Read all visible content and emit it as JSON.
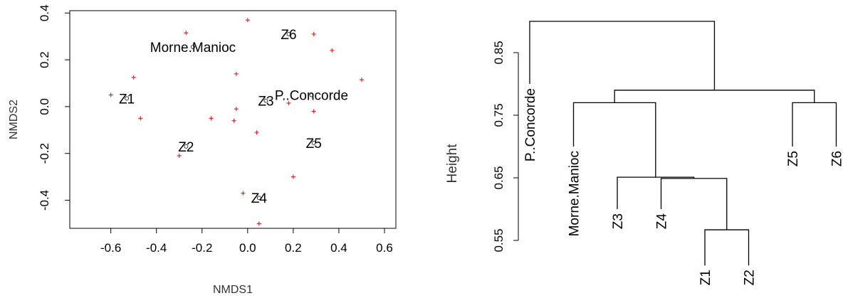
{
  "chart_data": [
    {
      "type": "scatter",
      "title": "",
      "xlabel": "NMDS1",
      "ylabel": "NMDS2",
      "xlim": [
        -0.78,
        0.65
      ],
      "ylim": [
        -0.52,
        0.41
      ],
      "xticks": [
        -0.6,
        -0.4,
        -0.2,
        0.0,
        0.2,
        0.4,
        0.6
      ],
      "xtick_labels": [
        "-0.6",
        "-0.4",
        "-0.2",
        "0.0",
        "0.2",
        "0.4",
        "0.6"
      ],
      "yticks": [
        -0.4,
        -0.2,
        0.0,
        0.2,
        0.4
      ],
      "ytick_labels": [
        "-0.4",
        "-0.2",
        "0.0",
        "0.2",
        "0.4"
      ],
      "sites": [
        {
          "name": "Morne.Manioc",
          "x": -0.24,
          "y": 0.255
        },
        {
          "name": "Z6",
          "x": 0.18,
          "y": 0.31
        },
        {
          "name": "P..Concorde",
          "x": 0.28,
          "y": 0.05
        },
        {
          "name": "Z1",
          "x": -0.53,
          "y": 0.035
        },
        {
          "name": "Z3",
          "x": 0.08,
          "y": 0.025
        },
        {
          "name": "Z2",
          "x": -0.27,
          "y": -0.17
        },
        {
          "name": "Z5",
          "x": 0.29,
          "y": -0.155
        },
        {
          "name": "Z4",
          "x": 0.05,
          "y": -0.39
        }
      ],
      "species_points": [
        {
          "x": -0.27,
          "y": 0.315
        },
        {
          "x": 0.0,
          "y": 0.37
        },
        {
          "x": 0.29,
          "y": 0.31
        },
        {
          "x": 0.37,
          "y": 0.24
        },
        {
          "x": -0.5,
          "y": 0.125
        },
        {
          "x": -0.05,
          "y": 0.14
        },
        {
          "x": 0.5,
          "y": 0.115
        },
        {
          "x": -0.6,
          "y": 0.05
        },
        {
          "x": 0.18,
          "y": 0.015
        },
        {
          "x": -0.05,
          "y": -0.01
        },
        {
          "x": 0.29,
          "y": -0.02
        },
        {
          "x": -0.47,
          "y": -0.05
        },
        {
          "x": -0.16,
          "y": -0.05
        },
        {
          "x": -0.06,
          "y": -0.06
        },
        {
          "x": 0.04,
          "y": -0.11
        },
        {
          "x": -0.3,
          "y": -0.21
        },
        {
          "x": 0.2,
          "y": -0.3
        },
        {
          "x": -0.02,
          "y": -0.37
        },
        {
          "x": 0.05,
          "y": -0.5
        }
      ]
    },
    {
      "type": "dendrogram",
      "title": "",
      "ylabel": "Height",
      "ylim": [
        0.55,
        0.9
      ],
      "yticks": [
        0.55,
        0.65,
        0.75,
        0.85
      ],
      "ytick_labels": [
        "0.55",
        "0.65",
        "0.75",
        "0.85"
      ],
      "leaves": [
        "P..Concorde",
        "Morne.Manioc",
        "Z3",
        "Z4",
        "Z1",
        "Z2",
        "Z5",
        "Z6"
      ],
      "merges": [
        {
          "left": "Z1",
          "right": "Z2",
          "height": 0.567
        },
        {
          "left": "Z4",
          "right": "Z1+Z2",
          "height": 0.649
        },
        {
          "left": "Z3",
          "right": "Z4+Z1+Z2",
          "height": 0.651
        },
        {
          "left": "Morne.Manioc",
          "right": "Z3+Z4+Z1+Z2",
          "height": 0.77
        },
        {
          "left": "Z5",
          "right": "Z6",
          "height": 0.77
        },
        {
          "left": "Morne.Manioc+Z3+Z4+Z1+Z2",
          "right": "Z5+Z6",
          "height": 0.79
        },
        {
          "left": "P..Concorde",
          "right": "rest",
          "height": 0.9
        }
      ]
    }
  ]
}
